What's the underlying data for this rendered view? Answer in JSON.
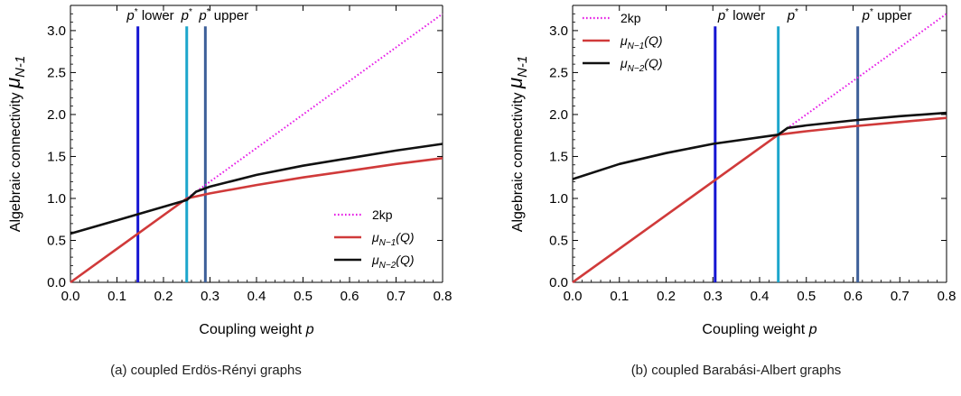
{
  "figure": {
    "captions": [
      "(a) coupled Erdös-Rényi graphs",
      "(b) coupled Barabási-Albert graphs"
    ]
  },
  "chart_data": [
    {
      "type": "line",
      "xlabel": "Coupling weight p",
      "ylabel": "Algebraic connectivity μN-1",
      "xlim": [
        0,
        0.8
      ],
      "ylim": [
        0,
        3.3
      ],
      "xticks": [
        "0.0",
        "0.1",
        "0.2",
        "0.3",
        "0.4",
        "0.5",
        "0.6",
        "0.7",
        "0.8"
      ],
      "yticks": [
        "0.0",
        "0.5",
        "1.0",
        "1.5",
        "2.0",
        "2.5",
        "3.0"
      ],
      "legend_position": "bottom-right",
      "series": [
        {
          "name": "2kp",
          "style": "dotted",
          "color": "#e61ee6",
          "x": [
            0,
            0.8
          ],
          "y": [
            0,
            3.2
          ]
        },
        {
          "name": "μN−1(Q)",
          "style": "solid",
          "color": "#d03a3a",
          "x": [
            0,
            0.25,
            0.3,
            0.4,
            0.5,
            0.6,
            0.7,
            0.8
          ],
          "y": [
            0,
            1.0,
            1.06,
            1.16,
            1.25,
            1.33,
            1.41,
            1.48
          ]
        },
        {
          "name": "μN−2(Q)",
          "style": "solid",
          "color": "#111111",
          "x": [
            0,
            0.1,
            0.2,
            0.25,
            0.27,
            0.3,
            0.4,
            0.5,
            0.6,
            0.7,
            0.8
          ],
          "y": [
            0.58,
            0.74,
            0.9,
            0.98,
            1.08,
            1.14,
            1.28,
            1.39,
            1.48,
            1.57,
            1.65
          ]
        }
      ],
      "vlines": [
        {
          "x": 0.145,
          "color": "#1414d2",
          "label": "lower"
        },
        {
          "x": 0.25,
          "color": "#1ca6cc",
          "label": ""
        },
        {
          "x": 0.29,
          "color": "#3d5f99",
          "label": "upper"
        }
      ]
    },
    {
      "type": "line",
      "xlabel": "Coupling weight p",
      "ylabel": "Algebraic connectivity μN-1",
      "xlim": [
        0,
        0.8
      ],
      "ylim": [
        0,
        3.3
      ],
      "xticks": [
        "0.0",
        "0.1",
        "0.2",
        "0.3",
        "0.4",
        "0.5",
        "0.6",
        "0.7",
        "0.8"
      ],
      "yticks": [
        "0.0",
        "0.5",
        "1.0",
        "1.5",
        "2.0",
        "2.5",
        "3.0"
      ],
      "legend_position": "top-left",
      "series": [
        {
          "name": "2kp",
          "style": "dotted",
          "color": "#e61ee6",
          "x": [
            0,
            0.8
          ],
          "y": [
            0,
            3.2
          ]
        },
        {
          "name": "μN−1(Q)",
          "style": "solid",
          "color": "#d03a3a",
          "x": [
            0,
            0.44,
            0.5,
            0.6,
            0.7,
            0.8
          ],
          "y": [
            0,
            1.76,
            1.8,
            1.86,
            1.91,
            1.96
          ]
        },
        {
          "name": "μN−2(Q)",
          "style": "solid",
          "color": "#111111",
          "x": [
            0,
            0.1,
            0.2,
            0.3,
            0.44,
            0.46,
            0.5,
            0.6,
            0.7,
            0.8
          ],
          "y": [
            1.23,
            1.41,
            1.54,
            1.65,
            1.76,
            1.84,
            1.87,
            1.93,
            1.98,
            2.02
          ]
        }
      ],
      "vlines": [
        {
          "x": 0.305,
          "color": "#1414d2",
          "label": "lower"
        },
        {
          "x": 0.44,
          "color": "#1ca6cc",
          "label": ""
        },
        {
          "x": 0.61,
          "color": "#3d5f99",
          "label": "upper"
        }
      ]
    }
  ]
}
